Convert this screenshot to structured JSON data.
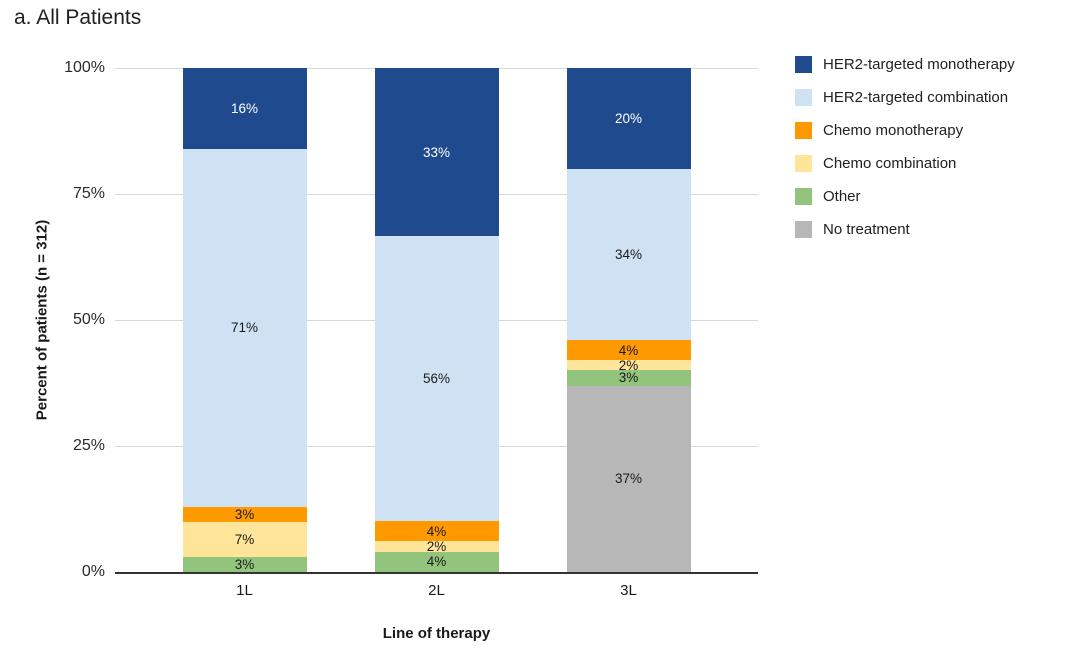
{
  "chart_data": {
    "type": "bar",
    "subtype": "stacked-100-percent",
    "title": "a. All Patients",
    "xlabel": "Line of therapy",
    "ylabel": "Percent of patients (n = 312)",
    "categories": [
      "1L",
      "2L",
      "3L"
    ],
    "series": [
      {
        "name": "HER2-targeted monotherapy",
        "color": "#1F4B8E",
        "label_color": "#FFFFFF",
        "values": [
          16,
          33,
          20
        ]
      },
      {
        "name": "HER2-targeted combination",
        "color": "#CFE2F3",
        "label_color": "#1A1A1A",
        "values": [
          71,
          56,
          34
        ]
      },
      {
        "name": "Chemo monotherapy",
        "color": "#FF9900",
        "label_color": "#1A1A1A",
        "values": [
          3,
          4,
          4
        ]
      },
      {
        "name": "Chemo combination",
        "color": "#FFE599",
        "label_color": "#1A1A1A",
        "values": [
          7,
          2,
          2
        ]
      },
      {
        "name": "Other",
        "color": "#93C47D",
        "label_color": "#1A1A1A",
        "values": [
          3,
          4,
          3
        ]
      },
      {
        "name": "No treatment",
        "color": "#B7B7B7",
        "label_color": "#1A1A1A",
        "values": [
          0,
          0,
          37
        ]
      }
    ],
    "value_suffix": "%",
    "ytick_labels": [
      "100%",
      "75%",
      "50%",
      "25%",
      "0%"
    ],
    "yticks": [
      100,
      75,
      50,
      25,
      0
    ],
    "ylim": [
      0,
      100
    ],
    "grid": true,
    "legend_position": "right",
    "colors": {
      "gridline": "#D9D9D9",
      "axis": "#333333",
      "background": "#FFFFFF"
    }
  }
}
